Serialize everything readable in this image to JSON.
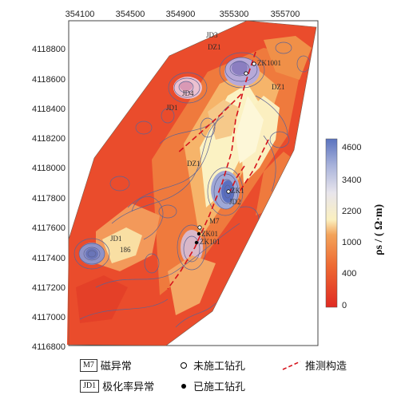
{
  "x_ticks": [
    "354100",
    "354500",
    "354900",
    "355300",
    "355700"
  ],
  "y_ticks": [
    "4118800",
    "4118600",
    "4118400",
    "4118200",
    "4118000",
    "4117800",
    "4117600",
    "4117400",
    "4117200",
    "4117000",
    "4116800"
  ],
  "colorbar": {
    "ticks": [
      "4600",
      "3400",
      "2200",
      "1000",
      "400",
      "0"
    ],
    "title": "ρs / ( Ω·m)",
    "colors": {
      "low": "#e8332a",
      "mid_low": "#f07a3a",
      "mid": "#f6c07a",
      "pale": "#fbf5c8",
      "mid_high": "#c9c6e2",
      "high": "#6d7fbf"
    }
  },
  "map_labels": {
    "dz1_top": "DZ1",
    "dz1_mid": "DZ1",
    "dz1_right": "DZ1",
    "jd3": "JD3",
    "jd4": "JD4",
    "jd1": "JD1",
    "zk1001": "ZK1001",
    "zk1": "ZK1",
    "jd2": "JD2",
    "m7": "M7",
    "zk01": "ZK01",
    "zk101": "ZK101",
    "label_186": "186",
    "label_jd1_left": "JD1"
  },
  "legend": {
    "m7_box": "M7",
    "m7_text": "磁异常",
    "jd1_box": "JD1",
    "jd1_text": "极化率异常",
    "open_hole": "未施工钻孔",
    "filled_hole": "已施工钻孔",
    "structure": "推测构造"
  }
}
